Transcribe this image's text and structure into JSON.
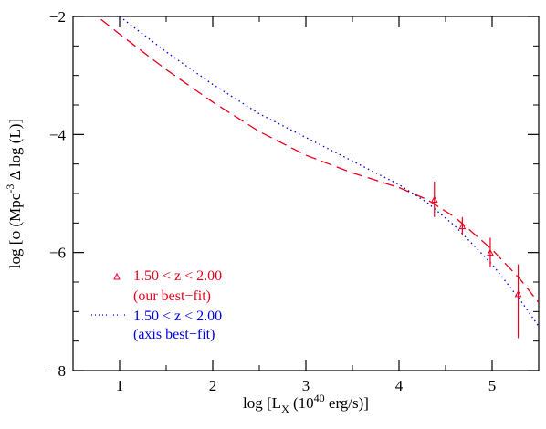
{
  "chart_data": {
    "type": "line",
    "title": "",
    "xlabel": "log [L",
    "xlabel_sub": "X",
    "xlabel_rest": " (10",
    "xlabel_sup": "40",
    "xlabel_end": " erg/s)]",
    "ylabel": "log [φ (Mpc",
    "ylabel_sup": "-3",
    "ylabel_end": " Δ log (L)]",
    "xlim": [
      0.5,
      5.5
    ],
    "ylim": [
      -8,
      -2
    ],
    "xticks": [
      1,
      2,
      3,
      4,
      5
    ],
    "yticks": [
      -8,
      -6,
      -4,
      -2
    ],
    "xtick_labels": [
      "1",
      "2",
      "3",
      "4",
      "5"
    ],
    "ytick_labels": [
      "−8",
      "−6",
      "−4",
      "−2"
    ],
    "grid": false,
    "legend_position": "bottom-left",
    "series": [
      {
        "style": "dashed",
        "color": "#e8001c",
        "x": [
          0.8,
          1.0,
          1.5,
          2.0,
          2.5,
          3.0,
          3.5,
          4.0,
          4.3,
          4.6,
          5.0,
          5.3,
          5.5
        ],
        "y": [
          -2.05,
          -2.3,
          -2.9,
          -3.45,
          -3.95,
          -4.35,
          -4.65,
          -4.9,
          -5.1,
          -5.4,
          -5.95,
          -6.45,
          -6.85
        ]
      },
      {
        "style": "dotted",
        "color": "#0000ee",
        "x": [
          1.0,
          1.5,
          2.0,
          2.5,
          3.0,
          3.5,
          4.0,
          4.3,
          4.6,
          5.0,
          5.3,
          5.5
        ],
        "y": [
          -2.0,
          -2.6,
          -3.15,
          -3.65,
          -4.05,
          -4.45,
          -4.85,
          -5.15,
          -5.55,
          -6.2,
          -6.8,
          -7.25
        ]
      }
    ],
    "points": {
      "color": "#e8001c",
      "x": [
        4.38,
        4.68,
        4.98,
        5.28
      ],
      "y": [
        -5.1,
        -5.55,
        -6.0,
        -6.7
      ],
      "yerr_low": [
        0.3,
        0.15,
        0.25,
        0.75
      ],
      "yerr_high": [
        0.3,
        0.15,
        0.25,
        0.5
      ]
    },
    "legend": [
      {
        "label": "1.50 < z <  2.00",
        "note": "(our best−fit)",
        "color": "#e8001c",
        "marker": "triangle"
      },
      {
        "label": "1.50 < z <  2.00",
        "note": "(axis best−fit)",
        "color": "#0000ee",
        "marker": "dotted-line"
      }
    ]
  }
}
